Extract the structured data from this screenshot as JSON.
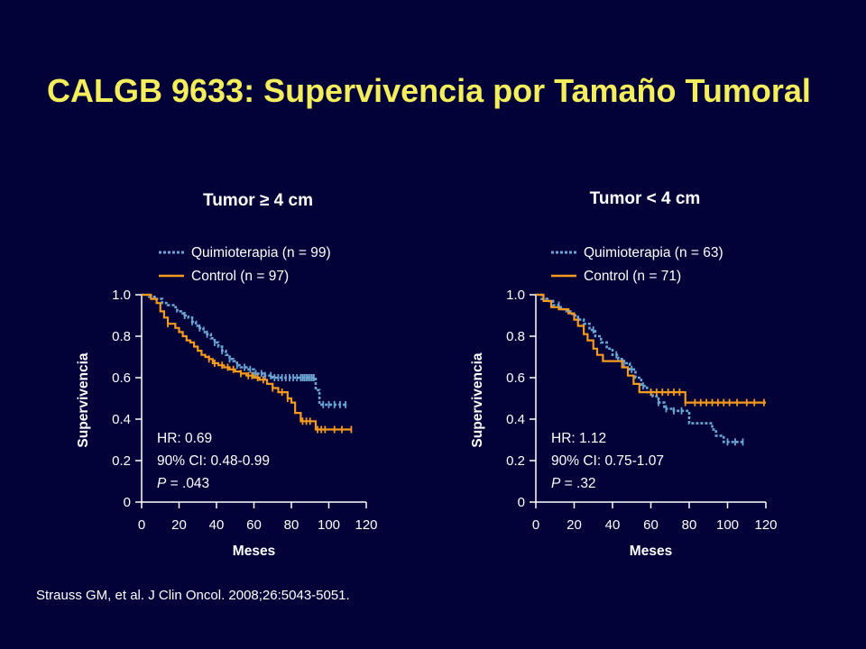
{
  "slide": {
    "title": "CALGB 9633: Supervivencia por Tamaño Tumoral",
    "citation": "Strauss GM, et al. J Clin Oncol. 2008;26:5043-5051."
  },
  "colors": {
    "background": "#020238",
    "title": "#f4ee5c",
    "quimioterapia": "#6aa5d4",
    "control": "#f79a1d",
    "text": "#ffffff"
  },
  "chart_data": [
    {
      "type": "line",
      "subtype": "kaplan-meier",
      "title": "Tumor ≥ 4 cm",
      "xlabel": "Meses",
      "ylabel": "Supervivencia",
      "xlim": [
        0,
        120
      ],
      "ylim": [
        0,
        1.0
      ],
      "xticks": [
        0,
        20,
        40,
        60,
        80,
        100,
        120
      ],
      "yticks": [
        0,
        0.2,
        0.4,
        0.6,
        0.8,
        1.0
      ],
      "ytick_labels": [
        "0",
        "0.2",
        "0.4",
        "0.6",
        "0.8",
        "1.0"
      ],
      "grid": false,
      "legend_position": "top",
      "annotation": {
        "hr": "HR: 0.69",
        "ci": "90% CI: 0.48-0.99",
        "p_label": "P",
        "p_value": " = .043"
      },
      "series": [
        {
          "name": "Quimioterapia (n = 99)",
          "style": "dotted",
          "x": [
            0,
            4,
            8,
            11,
            14,
            17,
            19,
            21,
            23,
            25,
            27,
            29,
            31,
            33,
            35,
            37,
            39,
            41,
            43,
            45,
            47,
            49,
            51,
            53,
            56,
            60,
            65,
            70,
            80,
            90,
            93,
            95,
            100,
            110
          ],
          "y": [
            1.0,
            0.99,
            0.98,
            0.96,
            0.95,
            0.94,
            0.92,
            0.91,
            0.9,
            0.89,
            0.87,
            0.85,
            0.84,
            0.82,
            0.81,
            0.79,
            0.77,
            0.75,
            0.73,
            0.71,
            0.69,
            0.68,
            0.66,
            0.65,
            0.64,
            0.62,
            0.61,
            0.6,
            0.6,
            0.6,
            0.54,
            0.47,
            0.47,
            0.47
          ],
          "censors": [
            23,
            27,
            31,
            35,
            39,
            43,
            47,
            51,
            55,
            58,
            61,
            64,
            66,
            69,
            71,
            73,
            75,
            77,
            79,
            81,
            83,
            85,
            86,
            87,
            88,
            89,
            90,
            91,
            92,
            97,
            100,
            103,
            106,
            109
          ]
        },
        {
          "name": "Control (n = 97)",
          "style": "solid",
          "x": [
            0,
            5,
            8,
            10,
            12,
            14,
            18,
            20,
            22,
            24,
            26,
            28,
            30,
            32,
            34,
            36,
            38,
            41,
            44,
            47,
            50,
            53,
            56,
            60,
            63,
            67,
            70,
            73,
            78,
            80,
            82,
            85,
            91,
            93,
            112
          ],
          "y": [
            1.0,
            0.98,
            0.96,
            0.92,
            0.89,
            0.86,
            0.84,
            0.82,
            0.8,
            0.78,
            0.77,
            0.75,
            0.73,
            0.71,
            0.7,
            0.69,
            0.67,
            0.66,
            0.65,
            0.64,
            0.63,
            0.62,
            0.61,
            0.6,
            0.59,
            0.57,
            0.55,
            0.53,
            0.5,
            0.48,
            0.43,
            0.39,
            0.39,
            0.35,
            0.35
          ],
          "censors": [
            14,
            36,
            39,
            43,
            46,
            49,
            53,
            57,
            59,
            62,
            65,
            70,
            75,
            78,
            86,
            88,
            90,
            94,
            96,
            98,
            103,
            107,
            112
          ]
        }
      ]
    },
    {
      "type": "line",
      "subtype": "kaplan-meier",
      "title": "Tumor < 4 cm",
      "xlabel": "Meses",
      "ylabel": "Supervivencia",
      "xlim": [
        0,
        120
      ],
      "ylim": [
        0,
        1.0
      ],
      "xticks": [
        0,
        20,
        40,
        60,
        80,
        100,
        120
      ],
      "yticks": [
        0,
        0.2,
        0.4,
        0.6,
        0.8,
        1.0
      ],
      "ytick_labels": [
        "0",
        "0.2",
        "0.4",
        "0.6",
        "0.8",
        "1.0"
      ],
      "grid": false,
      "legend_position": "top",
      "annotation": {
        "hr": "HR: 1.12",
        "ci": "90% CI: 0.75-1.07",
        "p_label": "P",
        "p_value": " = .32"
      },
      "series": [
        {
          "name": "Quimioterapia (n = 63)",
          "style": "dotted",
          "x": [
            0,
            3,
            6,
            9,
            13,
            16,
            19,
            22,
            25,
            28,
            31,
            34,
            37,
            40,
            43,
            46,
            49,
            52,
            55,
            58,
            61,
            64,
            67,
            72,
            76,
            80,
            88,
            92,
            94,
            98,
            108
          ],
          "y": [
            1.0,
            0.98,
            0.97,
            0.95,
            0.93,
            0.92,
            0.9,
            0.88,
            0.86,
            0.83,
            0.8,
            0.77,
            0.74,
            0.71,
            0.69,
            0.67,
            0.64,
            0.6,
            0.56,
            0.53,
            0.51,
            0.48,
            0.45,
            0.44,
            0.44,
            0.38,
            0.38,
            0.35,
            0.32,
            0.29,
            0.29
          ],
          "censors": [
            12,
            22,
            30,
            42,
            46,
            50,
            56,
            60,
            64,
            68,
            72,
            76,
            100,
            104,
            108
          ]
        },
        {
          "name": "Control (n = 71)",
          "style": "solid",
          "x": [
            0,
            4,
            8,
            12,
            17,
            20,
            22,
            25,
            27,
            30,
            32,
            35,
            38,
            45,
            48,
            51,
            54,
            56,
            60,
            78,
            120
          ],
          "y": [
            1.0,
            0.97,
            0.94,
            0.93,
            0.91,
            0.88,
            0.85,
            0.81,
            0.78,
            0.74,
            0.71,
            0.68,
            0.68,
            0.65,
            0.61,
            0.57,
            0.53,
            0.53,
            0.53,
            0.48,
            0.48
          ],
          "censors": [
            60,
            63,
            66,
            69,
            72,
            75,
            78,
            83,
            86,
            89,
            92,
            95,
            98,
            101,
            105,
            110,
            114,
            119
          ]
        }
      ]
    }
  ]
}
